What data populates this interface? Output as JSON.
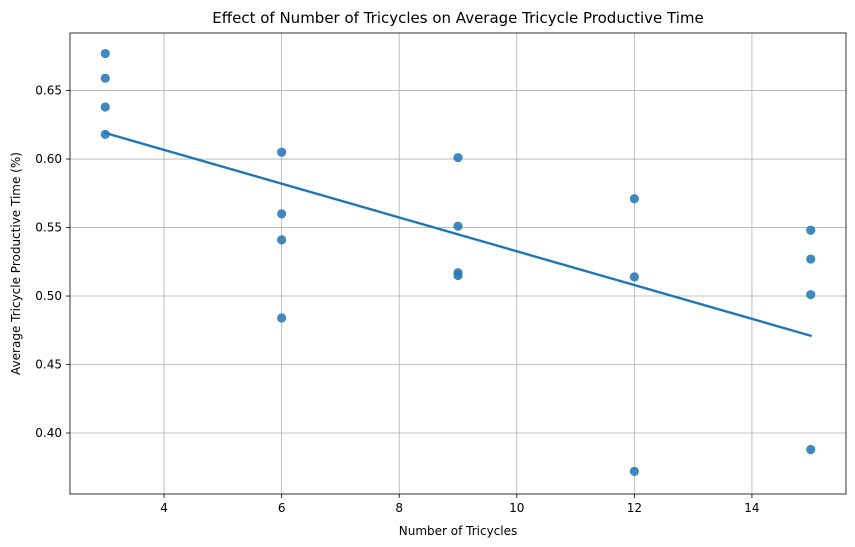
{
  "chart_data": {
    "type": "scatter",
    "title": "Effect of Number of Tricycles on Average Tricycle Productive Time",
    "xlabel": "Number of Tricycles",
    "ylabel": "Average Tricycle Productive Time (%)",
    "xlim": [
      2.4,
      15.6
    ],
    "ylim": [
      0.3555,
      0.692
    ],
    "xticks": [
      4,
      6,
      8,
      10,
      12,
      14
    ],
    "yticks": [
      0.4,
      0.45,
      0.5,
      0.55,
      0.6,
      0.65
    ],
    "ytick_labels": [
      "0.40",
      "0.45",
      "0.50",
      "0.55",
      "0.60",
      "0.65"
    ],
    "grid": true,
    "point_color": "#2b7bb9",
    "line_color": "#1f77b4",
    "points": [
      {
        "x": 3,
        "y": 0.677
      },
      {
        "x": 3,
        "y": 0.659
      },
      {
        "x": 3,
        "y": 0.638
      },
      {
        "x": 3,
        "y": 0.618
      },
      {
        "x": 6,
        "y": 0.605
      },
      {
        "x": 6,
        "y": 0.56
      },
      {
        "x": 6,
        "y": 0.541
      },
      {
        "x": 6,
        "y": 0.484
      },
      {
        "x": 9,
        "y": 0.601
      },
      {
        "x": 9,
        "y": 0.551
      },
      {
        "x": 9,
        "y": 0.517
      },
      {
        "x": 9,
        "y": 0.515
      },
      {
        "x": 12,
        "y": 0.571
      },
      {
        "x": 12,
        "y": 0.514
      },
      {
        "x": 12,
        "y": 0.372
      },
      {
        "x": 15,
        "y": 0.548
      },
      {
        "x": 15,
        "y": 0.527
      },
      {
        "x": 15,
        "y": 0.501
      },
      {
        "x": 15,
        "y": 0.388
      }
    ],
    "regression_line": {
      "x": [
        3,
        15
      ],
      "y": [
        0.619,
        0.471
      ]
    }
  }
}
